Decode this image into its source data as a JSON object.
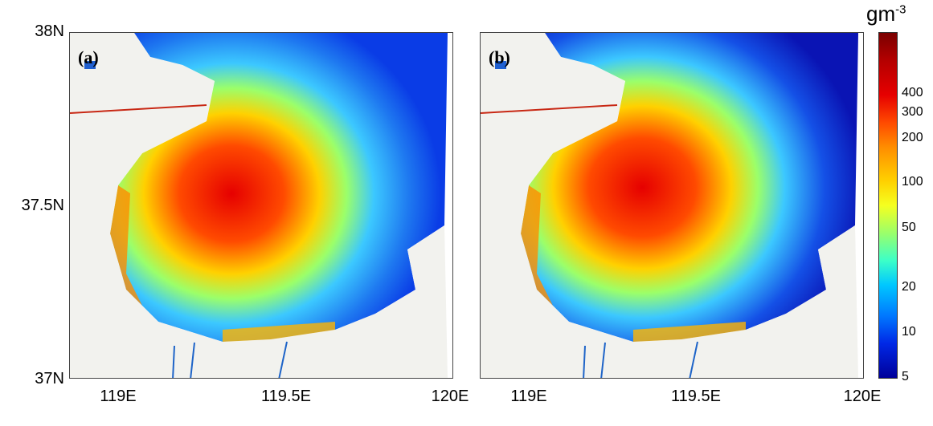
{
  "panels": [
    {
      "label": "(a)"
    },
    {
      "label": "(b)"
    }
  ],
  "y_axis_labels": [
    "38N",
    "37.5N",
    "37N"
  ],
  "x_axis_labels": [
    "119E",
    "119.5E",
    "120E"
  ],
  "colorbar": {
    "unit_base": "gm",
    "unit_exp": "-3",
    "ticks": [
      "400",
      "300",
      "200",
      "100",
      "50",
      "20",
      "10",
      "5"
    ],
    "scale": "log"
  },
  "colors": {
    "high": "#b40000",
    "mid": "#ffd100",
    "low": "#0028e6",
    "land": "#ffffff"
  }
}
